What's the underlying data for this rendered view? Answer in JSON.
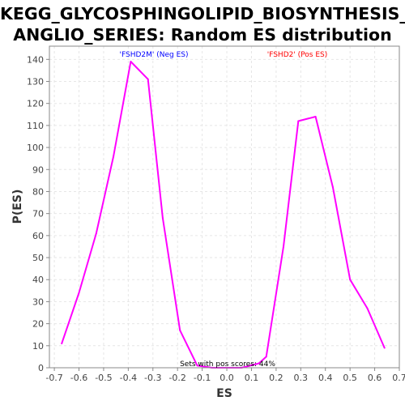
{
  "chart_data": {
    "type": "line",
    "title_lines": [
      "KEGG_GLYCOSPHINGOLIPID_BIOSYNTHESIS_G",
      "ANGLIO_SERIES: Random ES distribution"
    ],
    "xlabel": "ES",
    "ylabel": "P(ES)",
    "xlim": [
      -0.72,
      0.7
    ],
    "ylim": [
      0,
      146
    ],
    "xticks": [
      -0.7,
      -0.6,
      -0.5,
      -0.4,
      -0.3,
      -0.2,
      -0.1,
      0.0,
      0.1,
      0.2,
      0.3,
      0.4,
      0.5,
      0.6,
      0.7
    ],
    "xtick_labels": [
      "-0.7",
      "-0.6",
      "-0.5",
      "-0.4",
      "-0.3",
      "-0.2",
      "-0.1",
      "0.0",
      "0.1",
      "0.2",
      "0.3",
      "0.4",
      "0.5",
      "0.6",
      "0.7"
    ],
    "yticks": [
      0,
      10,
      20,
      30,
      40,
      50,
      60,
      70,
      80,
      90,
      100,
      110,
      120,
      130,
      140
    ],
    "grid": true,
    "series": [
      {
        "color": "#ff00ff",
        "x": [
          -0.67,
          -0.6,
          -0.53,
          -0.46,
          -0.39,
          -0.32,
          -0.26,
          -0.19,
          -0.12,
          -0.06,
          0.0,
          0.06,
          0.13,
          0.16,
          0.23,
          0.29,
          0.36,
          0.43,
          0.5,
          0.57,
          0.64
        ],
        "y": [
          11,
          34,
          61,
          96,
          139,
          131,
          68,
          17,
          1,
          0,
          0,
          0,
          2,
          5,
          55,
          112,
          114,
          82,
          40,
          27,
          9
        ]
      }
    ],
    "annotations": [
      {
        "text": "'FSHD2M' (Neg ES)",
        "color": "#0000ff"
      },
      {
        "text": "'FSHD2' (Pos ES)",
        "color": "#ff0000"
      },
      {
        "text": "Sets with pos scores: 44%",
        "color": "#000000"
      }
    ]
  }
}
